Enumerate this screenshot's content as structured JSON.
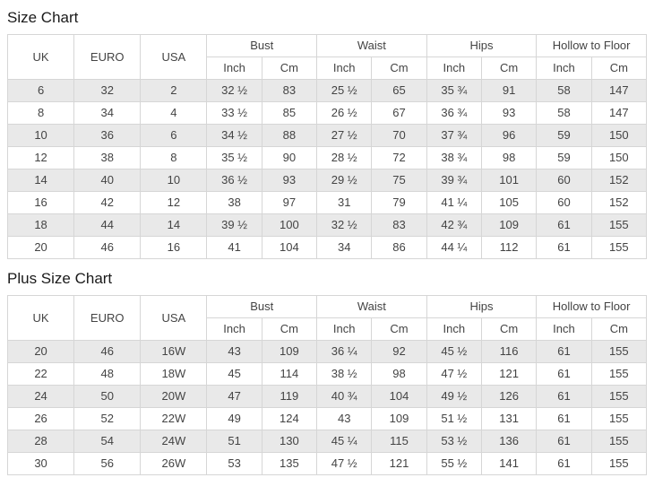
{
  "colors": {
    "stripe_row": "#e9e9e9",
    "table_border": "#d6d6d6",
    "cell_text": "#444444",
    "title_text": "#1a1a1a"
  },
  "tables": [
    {
      "title": "Size Chart",
      "group_headers": [
        {
          "label": "UK",
          "rowspan": 2
        },
        {
          "label": "EURO",
          "rowspan": 2
        },
        {
          "label": "USA",
          "rowspan": 2
        },
        {
          "label": "Bust",
          "colspan": 2
        },
        {
          "label": "Waist",
          "colspan": 2
        },
        {
          "label": "Hips",
          "colspan": 2
        },
        {
          "label": "Hollow to Floor",
          "colspan": 2
        }
      ],
      "sub_headers": [
        "Inch",
        "Cm",
        "Inch",
        "Cm",
        "Inch",
        "Cm",
        "Inch",
        "Cm"
      ],
      "rows": [
        [
          "6",
          "32",
          "2",
          "32 ½",
          "83",
          "25 ½",
          "65",
          "35 ¾",
          "91",
          "58",
          "147"
        ],
        [
          "8",
          "34",
          "4",
          "33 ½",
          "85",
          "26 ½",
          "67",
          "36 ¾",
          "93",
          "58",
          "147"
        ],
        [
          "10",
          "36",
          "6",
          "34 ½",
          "88",
          "27 ½",
          "70",
          "37 ¾",
          "96",
          "59",
          "150"
        ],
        [
          "12",
          "38",
          "8",
          "35 ½",
          "90",
          "28 ½",
          "72",
          "38 ¾",
          "98",
          "59",
          "150"
        ],
        [
          "14",
          "40",
          "10",
          "36 ½",
          "93",
          "29 ½",
          "75",
          "39 ¾",
          "101",
          "60",
          "152"
        ],
        [
          "16",
          "42",
          "12",
          "38",
          "97",
          "31",
          "79",
          "41 ¼",
          "105",
          "60",
          "152"
        ],
        [
          "18",
          "44",
          "14",
          "39 ½",
          "100",
          "32 ½",
          "83",
          "42 ¾",
          "109",
          "61",
          "155"
        ],
        [
          "20",
          "46",
          "16",
          "41",
          "104",
          "34",
          "86",
          "44 ¼",
          "112",
          "61",
          "155"
        ]
      ]
    },
    {
      "title": "Plus Size Chart",
      "group_headers": [
        {
          "label": "UK",
          "rowspan": 2
        },
        {
          "label": "EURO",
          "rowspan": 2
        },
        {
          "label": "USA",
          "rowspan": 2
        },
        {
          "label": "Bust",
          "colspan": 2
        },
        {
          "label": "Waist",
          "colspan": 2
        },
        {
          "label": "Hips",
          "colspan": 2
        },
        {
          "label": "Hollow to Floor",
          "colspan": 2
        }
      ],
      "sub_headers": [
        "Inch",
        "Cm",
        "Inch",
        "Cm",
        "Inch",
        "Cm",
        "Inch",
        "Cm"
      ],
      "rows": [
        [
          "20",
          "46",
          "16W",
          "43",
          "109",
          "36 ¼",
          "92",
          "45 ½",
          "116",
          "61",
          "155"
        ],
        [
          "22",
          "48",
          "18W",
          "45",
          "114",
          "38 ½",
          "98",
          "47 ½",
          "121",
          "61",
          "155"
        ],
        [
          "24",
          "50",
          "20W",
          "47",
          "119",
          "40 ¾",
          "104",
          "49 ½",
          "126",
          "61",
          "155"
        ],
        [
          "26",
          "52",
          "22W",
          "49",
          "124",
          "43",
          "109",
          "51 ½",
          "131",
          "61",
          "155"
        ],
        [
          "28",
          "54",
          "24W",
          "51",
          "130",
          "45 ¼",
          "115",
          "53 ½",
          "136",
          "61",
          "155"
        ],
        [
          "30",
          "56",
          "26W",
          "53",
          "135",
          "47 ½",
          "121",
          "55 ½",
          "141",
          "61",
          "155"
        ]
      ]
    }
  ]
}
